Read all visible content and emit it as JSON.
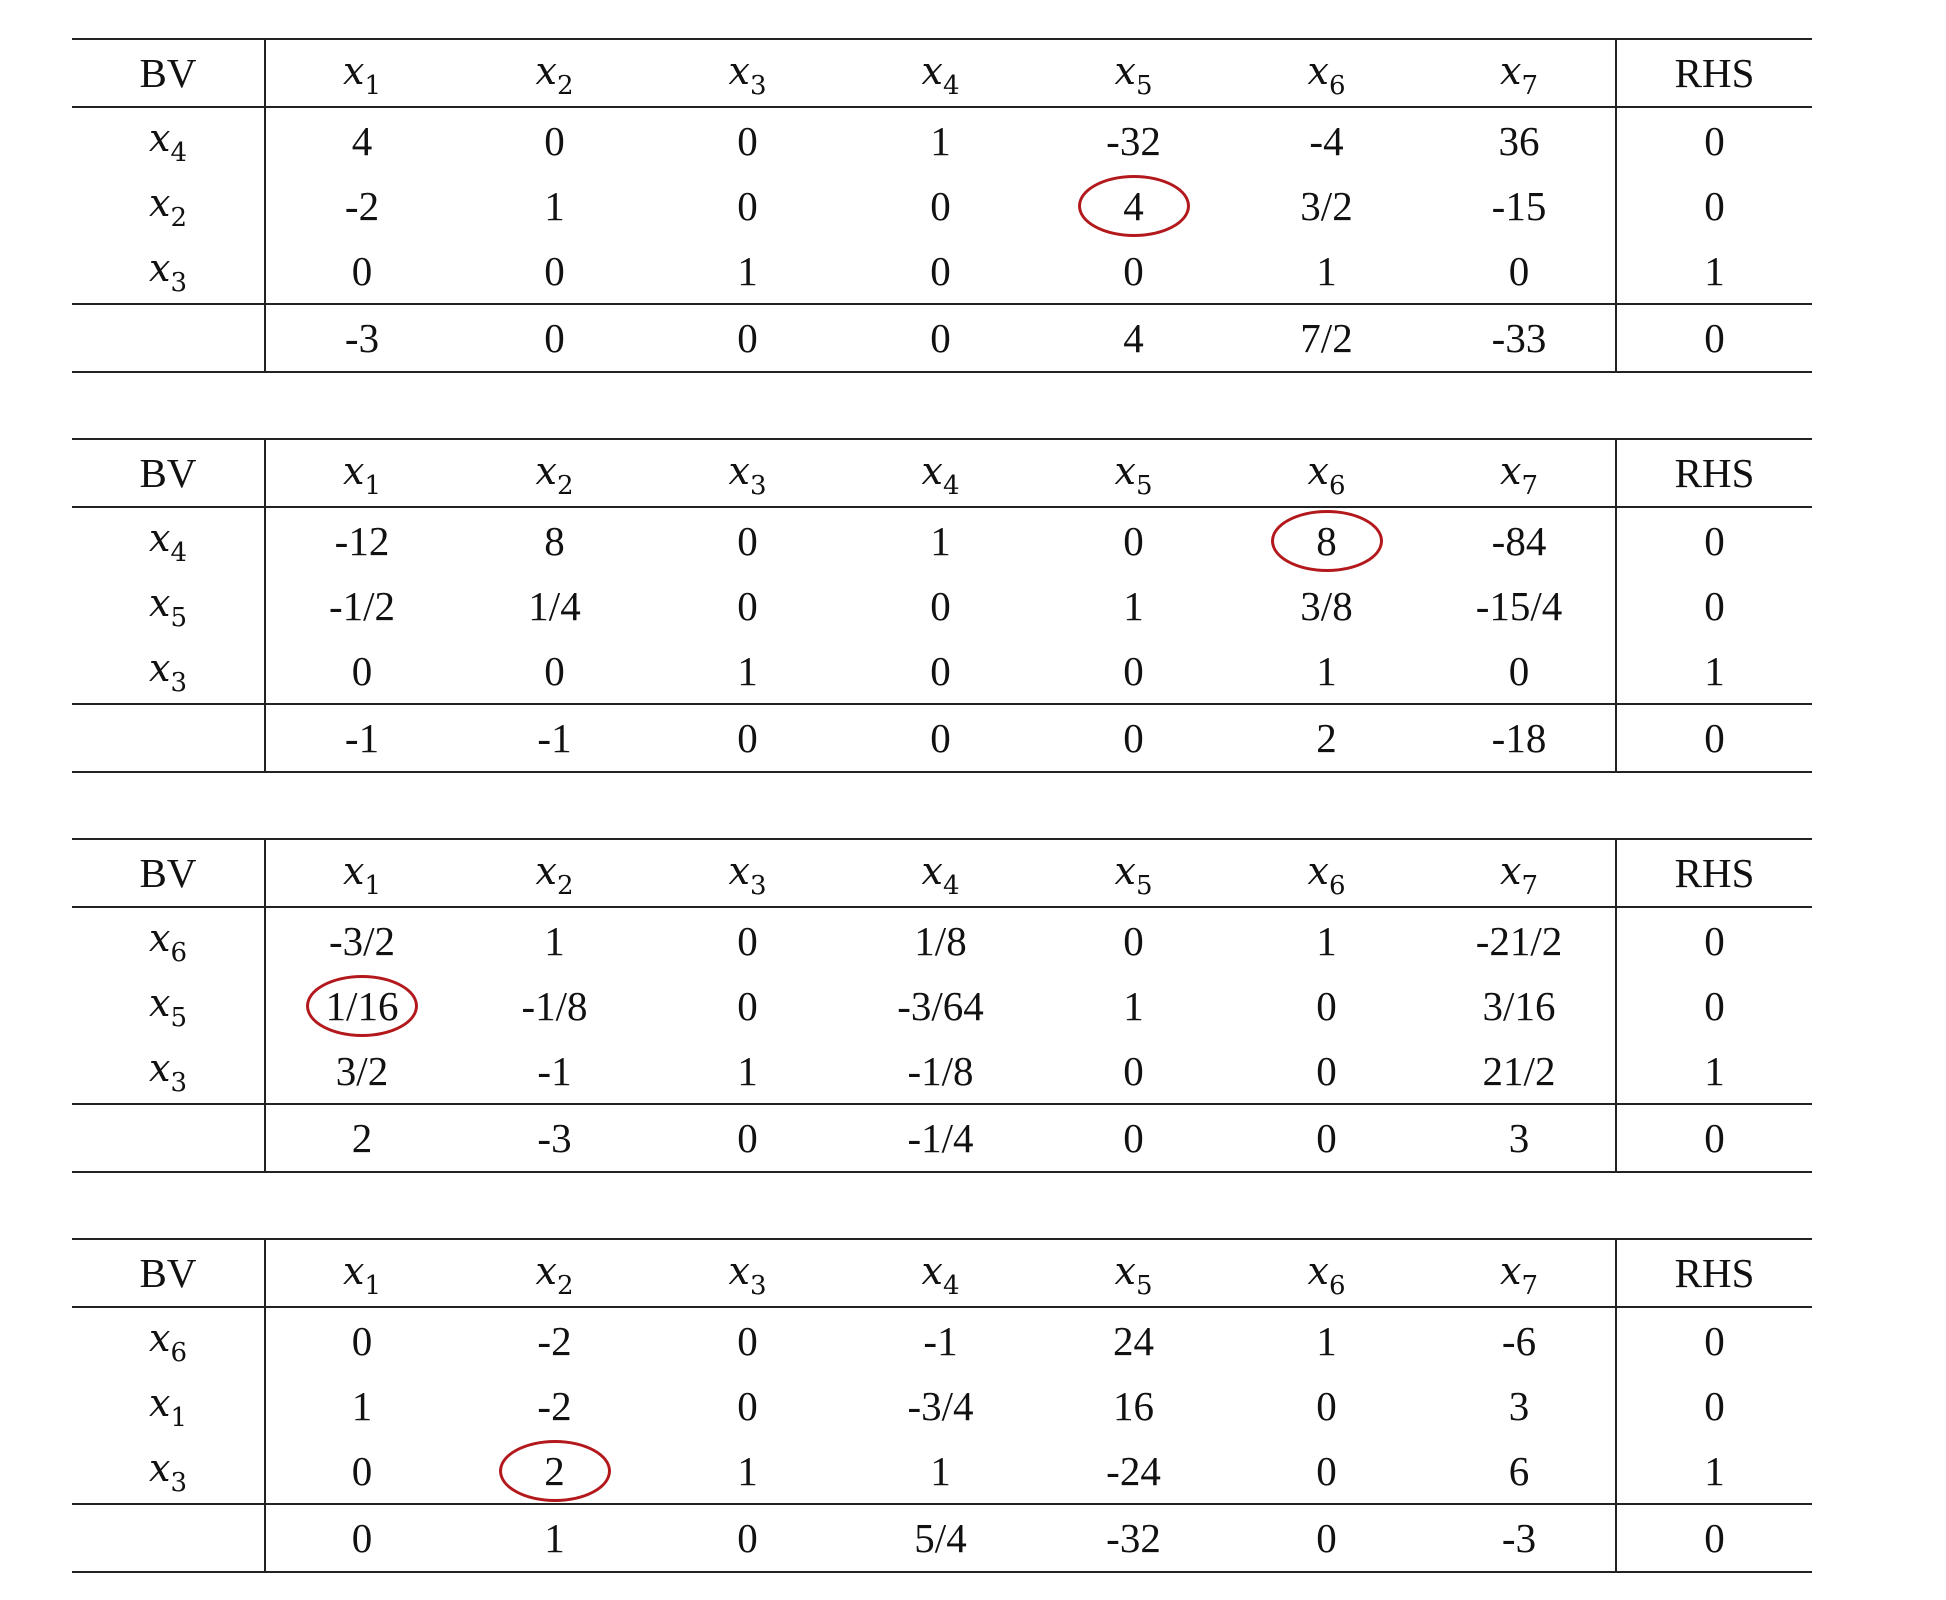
{
  "columns": [
    "BV",
    "x1",
    "x2",
    "x3",
    "x4",
    "x5",
    "x6",
    "x7",
    "RHS"
  ],
  "column_vars": [
    {
      "base": "x",
      "sub": "1"
    },
    {
      "base": "x",
      "sub": "2"
    },
    {
      "base": "x",
      "sub": "3"
    },
    {
      "base": "x",
      "sub": "4"
    },
    {
      "base": "x",
      "sub": "5"
    },
    {
      "base": "x",
      "sub": "6"
    },
    {
      "base": "x",
      "sub": "7"
    }
  ],
  "header_bv": "BV",
  "header_rhs": "RHS",
  "pivot_color": "#b3191c",
  "tableaus": [
    {
      "rows": [
        {
          "bv": {
            "base": "x",
            "sub": "4"
          },
          "values": [
            "4",
            "0",
            "0",
            "1",
            "-32",
            "-4",
            "36"
          ],
          "rhs": "0"
        },
        {
          "bv": {
            "base": "x",
            "sub": "2"
          },
          "values": [
            "-2",
            "1",
            "0",
            "0",
            "4",
            "3/2",
            "-15"
          ],
          "rhs": "0"
        },
        {
          "bv": {
            "base": "x",
            "sub": "3"
          },
          "values": [
            "0",
            "0",
            "1",
            "0",
            "0",
            "1",
            "0"
          ],
          "rhs": "1"
        }
      ],
      "objective": {
        "values": [
          "-3",
          "0",
          "0",
          "0",
          "4",
          "7/2",
          "-33"
        ],
        "rhs": "0"
      },
      "pivot": {
        "row": 1,
        "col": 4
      }
    },
    {
      "rows": [
        {
          "bv": {
            "base": "x",
            "sub": "4"
          },
          "values": [
            "-12",
            "8",
            "0",
            "1",
            "0",
            "8",
            "-84"
          ],
          "rhs": "0"
        },
        {
          "bv": {
            "base": "x",
            "sub": "5"
          },
          "values": [
            "-1/2",
            "1/4",
            "0",
            "0",
            "1",
            "3/8",
            "-15/4"
          ],
          "rhs": "0"
        },
        {
          "bv": {
            "base": "x",
            "sub": "3"
          },
          "values": [
            "0",
            "0",
            "1",
            "0",
            "0",
            "1",
            "0"
          ],
          "rhs": "1"
        }
      ],
      "objective": {
        "values": [
          "-1",
          "-1",
          "0",
          "0",
          "0",
          "2",
          "-18"
        ],
        "rhs": "0"
      },
      "pivot": {
        "row": 0,
        "col": 5
      }
    },
    {
      "rows": [
        {
          "bv": {
            "base": "x",
            "sub": "6"
          },
          "values": [
            "-3/2",
            "1",
            "0",
            "1/8",
            "0",
            "1",
            "-21/2"
          ],
          "rhs": "0"
        },
        {
          "bv": {
            "base": "x",
            "sub": "5"
          },
          "values": [
            "1/16",
            "-1/8",
            "0",
            "-3/64",
            "1",
            "0",
            "3/16"
          ],
          "rhs": "0"
        },
        {
          "bv": {
            "base": "x",
            "sub": "3"
          },
          "values": [
            "3/2",
            "-1",
            "1",
            "-1/8",
            "0",
            "0",
            "21/2"
          ],
          "rhs": "1"
        }
      ],
      "objective": {
        "values": [
          "2",
          "-3",
          "0",
          "-1/4",
          "0",
          "0",
          "3"
        ],
        "rhs": "0"
      },
      "pivot": {
        "row": 1,
        "col": 0
      }
    },
    {
      "rows": [
        {
          "bv": {
            "base": "x",
            "sub": "6"
          },
          "values": [
            "0",
            "-2",
            "0",
            "-1",
            "24",
            "1",
            "-6"
          ],
          "rhs": "0"
        },
        {
          "bv": {
            "base": "x",
            "sub": "1"
          },
          "values": [
            "1",
            "-2",
            "0",
            "-3/4",
            "16",
            "0",
            "3"
          ],
          "rhs": "0"
        },
        {
          "bv": {
            "base": "x",
            "sub": "3"
          },
          "values": [
            "0",
            "2",
            "1",
            "1",
            "-24",
            "0",
            "6"
          ],
          "rhs": "1"
        }
      ],
      "objective": {
        "values": [
          "0",
          "1",
          "0",
          "5/4",
          "-32",
          "0",
          "-3"
        ],
        "rhs": "0"
      },
      "pivot": {
        "row": 2,
        "col": 1
      }
    }
  ]
}
